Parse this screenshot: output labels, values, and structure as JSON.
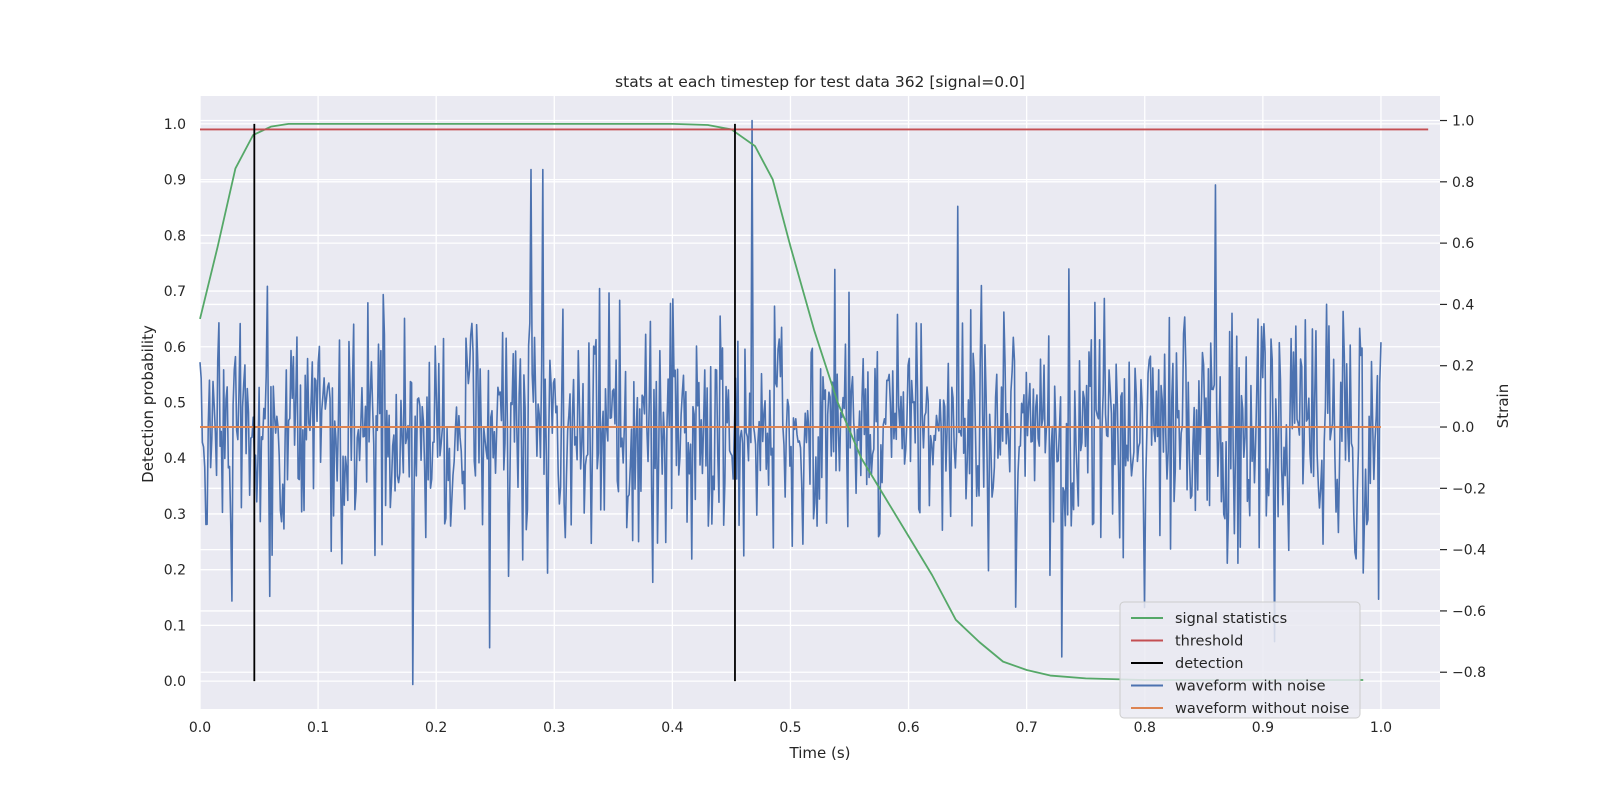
{
  "chart_data": {
    "type": "line",
    "title": "stats at each timestep for test data 362 [signal=0.0]",
    "xlabel": "Time (s)",
    "ylabel": "Detection probability",
    "ylabel_right": "Strain",
    "xlim": [
      0.0,
      1.05
    ],
    "ylim": [
      -0.05,
      1.05
    ],
    "ylim_right": [
      -0.92,
      1.08
    ],
    "x_ticks": [
      0.0,
      0.1,
      0.2,
      0.3,
      0.4,
      0.5,
      0.6,
      0.7,
      0.8,
      0.9,
      1.0
    ],
    "x_tick_labels": [
      "0.0",
      "0.1",
      "0.2",
      "0.3",
      "0.4",
      "0.5",
      "0.6",
      "0.7",
      "0.8",
      "0.9",
      "1.0"
    ],
    "y_ticks": [
      0.0,
      0.1,
      0.2,
      0.3,
      0.4,
      0.5,
      0.6,
      0.7,
      0.8,
      0.9,
      1.0
    ],
    "y_tick_labels": [
      "0.0",
      "0.1",
      "0.2",
      "0.3",
      "0.4",
      "0.5",
      "0.6",
      "0.7",
      "0.8",
      "0.9",
      "1.0"
    ],
    "y_right_ticks": [
      -0.8,
      -0.6,
      -0.4,
      -0.2,
      0.0,
      0.2,
      0.4,
      0.6,
      0.8,
      1.0
    ],
    "y_right_tick_labels": [
      "−0.8",
      "−0.6",
      "−0.4",
      "−0.2",
      "0.0",
      "0.2",
      "0.4",
      "0.6",
      "0.8",
      "1.0"
    ],
    "grid": true,
    "legend_position": "lower-right",
    "series": [
      {
        "name": "signal statistics",
        "color": "#55a868",
        "axis": "left",
        "x": [
          0.0,
          0.015,
          0.03,
          0.045,
          0.06,
          0.075,
          0.1,
          0.2,
          0.3,
          0.4,
          0.43,
          0.45,
          0.47,
          0.485,
          0.5,
          0.52,
          0.54,
          0.56,
          0.58,
          0.6,
          0.62,
          0.64,
          0.66,
          0.68,
          0.7,
          0.72,
          0.75,
          0.8,
          0.85,
          0.9,
          0.95,
          0.985
        ],
        "y": [
          0.65,
          0.78,
          0.92,
          0.98,
          0.995,
          1.0,
          1.0,
          1.0,
          1.0,
          1.0,
          0.998,
          0.99,
          0.96,
          0.9,
          0.78,
          0.63,
          0.5,
          0.4,
          0.33,
          0.26,
          0.19,
          0.11,
          0.07,
          0.035,
          0.02,
          0.01,
          0.005,
          0.002,
          0.002,
          0.002,
          0.002,
          0.002
        ]
      },
      {
        "name": "threshold",
        "color": "#c44e52",
        "axis": "left",
        "x": [
          0.0,
          1.04
        ],
        "y": [
          0.99,
          0.99
        ]
      },
      {
        "name": "detection",
        "color": "#000000",
        "axis": "left",
        "x": [
          0.046,
          0.453
        ],
        "y_range": [
          0.0,
          1.0
        ]
      },
      {
        "name": "waveform with noise",
        "color": "#4c72b0",
        "axis": "right",
        "x_range": [
          0.0,
          1.0
        ],
        "n_points": 1000,
        "mean": 0.0,
        "std": 0.2,
        "peaks": [
          {
            "x": 0.18,
            "y": -0.84
          },
          {
            "x": 0.467,
            "y": 1.0
          },
          {
            "x": 0.28,
            "y": 0.84
          },
          {
            "x": 0.29,
            "y": 0.84
          },
          {
            "x": 0.86,
            "y": 0.79
          },
          {
            "x": 0.245,
            "y": -0.72
          },
          {
            "x": 0.73,
            "y": -0.75
          },
          {
            "x": 0.91,
            "y": -0.7
          }
        ]
      },
      {
        "name": "waveform without noise",
        "color": "#dd8452",
        "axis": "right",
        "x": [
          0.0,
          1.0
        ],
        "y": [
          0.0,
          0.0
        ]
      }
    ]
  }
}
